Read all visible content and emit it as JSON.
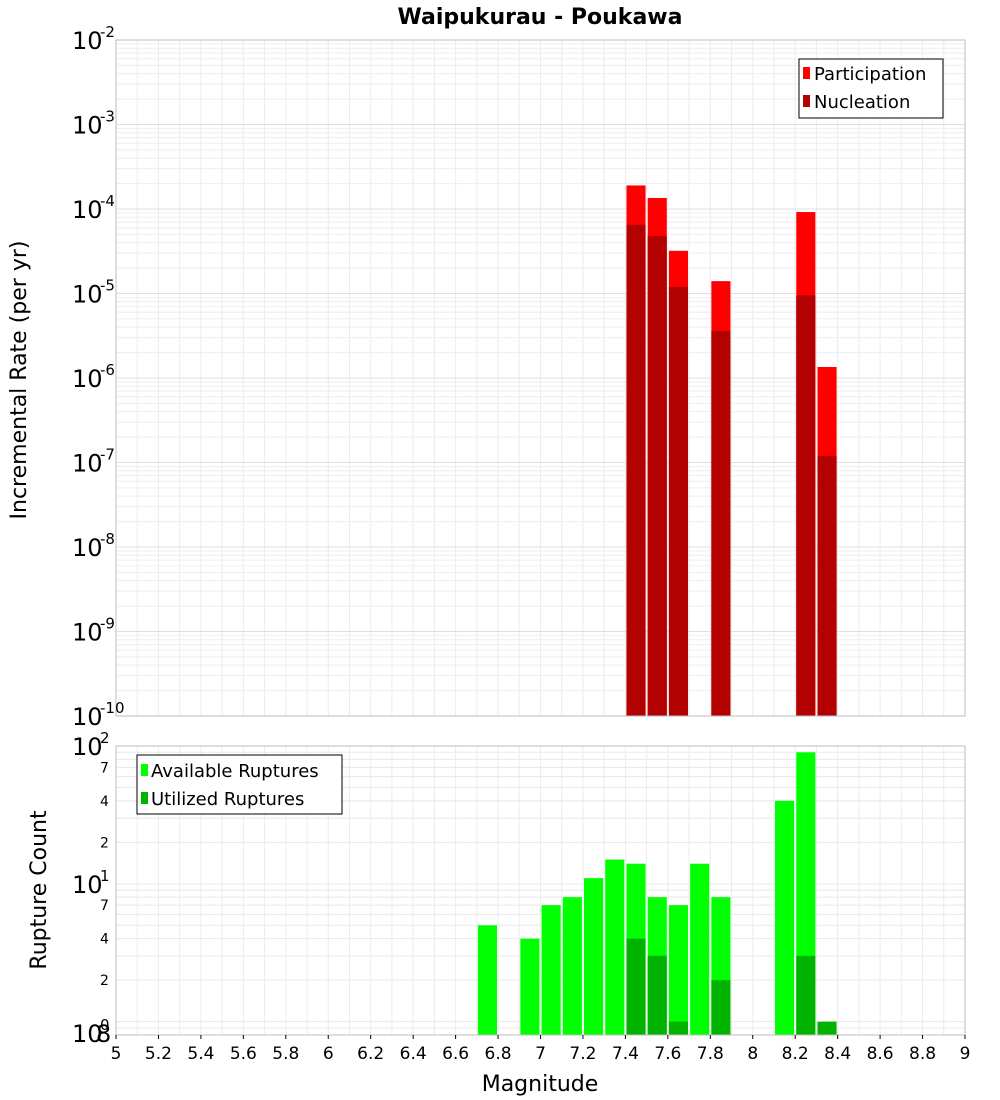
{
  "chart_data": [
    {
      "id": "rate",
      "type": "bar",
      "title": "Waipukurau - Poukawa",
      "xlabel": "",
      "ylabel": "Incremental Rate (per yr)",
      "xlim": [
        5,
        9
      ],
      "ylim": [
        1e-10,
        0.01
      ],
      "yscale": "log",
      "grid": true,
      "legend_position": "top-right",
      "bar_width": 0.09,
      "y_tick_bases": [
        "10",
        "10",
        "10",
        "10",
        "10",
        "10",
        "10",
        "10",
        "10"
      ],
      "y_tick_exponents": [
        "-10",
        "-9",
        "-8",
        "-7",
        "-6",
        "-5",
        "-4",
        "-3",
        "-2"
      ],
      "series": [
        {
          "name": "Participation",
          "color": "#ff0000",
          "x": [
            7.45,
            7.55,
            7.65,
            7.85,
            8.25,
            8.35
          ],
          "values": [
            0.00019,
            0.000135,
            3.2e-05,
            1.4e-05,
            9.2e-05,
            1.35e-06
          ]
        },
        {
          "name": "Nucleation",
          "color": "#b30000",
          "x": [
            7.45,
            7.55,
            7.65,
            7.85,
            8.25,
            8.35
          ],
          "values": [
            6.5e-05,
            4.8e-05,
            1.2e-05,
            3.6e-06,
            9.5e-06,
            1.2e-07
          ]
        }
      ]
    },
    {
      "id": "count",
      "type": "bar",
      "title": "",
      "xlabel": "Magnitude",
      "ylabel": "Rupture Count",
      "xlim": [
        5,
        9
      ],
      "ylim": [
        0.8,
        100
      ],
      "yscale": "log",
      "grid": true,
      "legend_position": "top-left",
      "bar_width": 0.09,
      "x_ticks": [
        "5",
        "5.2",
        "5.4",
        "5.6",
        "5.8",
        "6",
        "6.2",
        "6.4",
        "6.6",
        "6.8",
        "7",
        "7.2",
        "7.4",
        "7.6",
        "7.8",
        "8",
        "8.2",
        "8.4",
        "8.6",
        "8.8",
        "9"
      ],
      "y_tick_bases": [
        "10",
        "10",
        "10"
      ],
      "y_tick_exponents": [
        "0",
        "1",
        "2"
      ],
      "y_minor_labels": [
        "8",
        "2",
        "4",
        "7",
        "2",
        "4",
        "7"
      ],
      "series": [
        {
          "name": "Available Ruptures",
          "color": "#00ff00",
          "x": [
            6.75,
            6.95,
            7.05,
            7.15,
            7.25,
            7.35,
            7.45,
            7.55,
            7.65,
            7.75,
            7.85,
            8.15,
            8.25
          ],
          "values": [
            5,
            4,
            7,
            8,
            11,
            15,
            14,
            8,
            7,
            14,
            8,
            40,
            90
          ]
        },
        {
          "name": "Utilized Ruptures",
          "color": "#00b300",
          "x": [
            7.45,
            7.55,
            7.65,
            7.85,
            8.25,
            8.35
          ],
          "values": [
            4,
            3,
            1,
            2,
            3,
            1
          ]
        }
      ]
    }
  ]
}
